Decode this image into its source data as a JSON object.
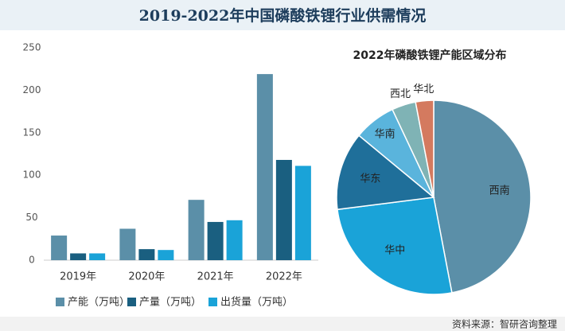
{
  "title": "2019-2022年中国磷酸铁锂行业供需情况",
  "source": "资料来源：智研咨询整理",
  "chart_data": [
    {
      "type": "bar",
      "categories": [
        "2019年",
        "2020年",
        "2021年",
        "2022年"
      ],
      "series": [
        {
          "name": "产能（万吨）",
          "color": "#5b8fa8",
          "values": [
            29,
            37,
            71,
            219
          ]
        },
        {
          "name": "产量（万吨）",
          "color": "#1a5f80",
          "values": [
            8,
            13,
            45,
            118
          ]
        },
        {
          "name": "出货量（万吨）",
          "color": "#1aa3d8",
          "values": [
            8,
            12,
            47,
            111
          ]
        }
      ],
      "ylim": [
        0,
        250
      ],
      "yticks": [
        0,
        50,
        100,
        150,
        200,
        250
      ],
      "grid": false,
      "legend": "bottom"
    },
    {
      "type": "pie",
      "title": "2022年磷酸铁锂产能区域分布",
      "categories": [
        "西南",
        "华中",
        "华东",
        "华南",
        "西北",
        "华北"
      ],
      "values": [
        47,
        26,
        13,
        7,
        4,
        3
      ],
      "colors": [
        "#5b8fa8",
        "#1aa3d8",
        "#1f6f9a",
        "#5ab4dc",
        "#7fb3b5",
        "#d47a5f"
      ]
    }
  ]
}
